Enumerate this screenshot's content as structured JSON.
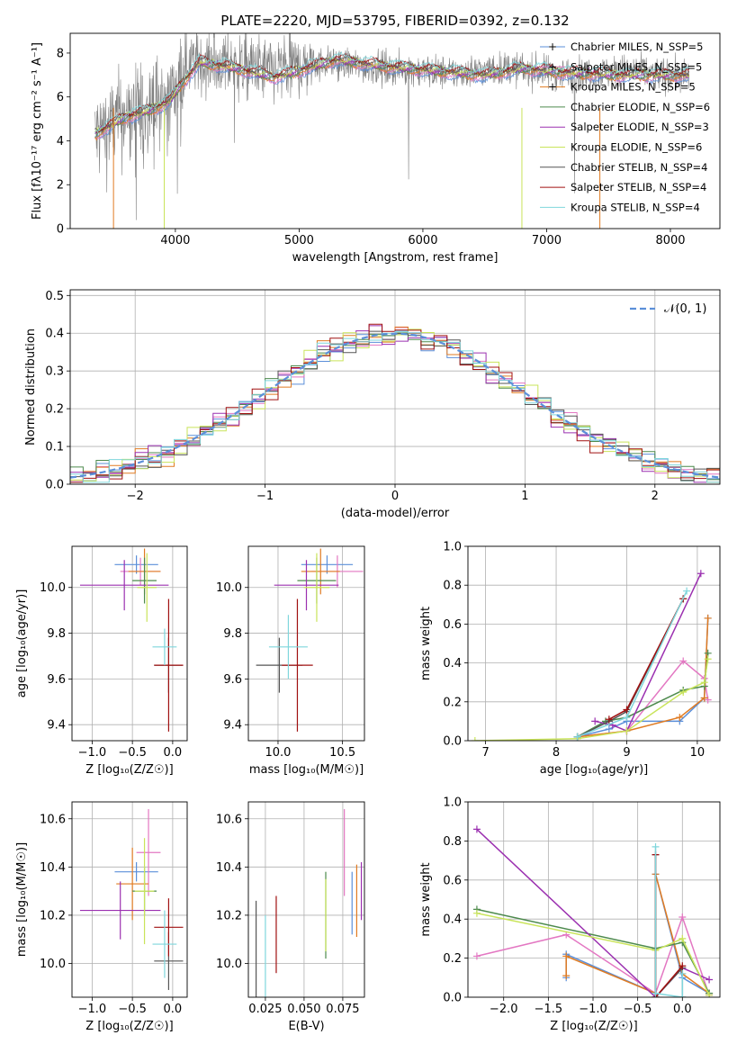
{
  "chart_data": [
    {
      "id": "spectrum",
      "type": "line",
      "title": "PLATE=2220, MJD=53795, FIBERID=0392, z=0.132",
      "xlabel": "wavelength [Angstrom, rest frame]",
      "ylabel": "Flux [fλ10⁻¹⁷ erg cm⁻² s⁻¹ A⁻¹]",
      "xlim": [
        3150,
        8400
      ],
      "ylim": [
        0,
        8.9
      ],
      "xticks": [
        4000,
        5000,
        6000,
        7000,
        8000
      ],
      "yticks": [
        0,
        2,
        4,
        6,
        8
      ],
      "data_color": "#808080",
      "data_outline": [
        [
          3350,
          4.2
        ],
        [
          3550,
          5.0
        ],
        [
          3750,
          5.4
        ],
        [
          3950,
          5.9
        ],
        [
          4100,
          7.6
        ],
        [
          4400,
          7.5
        ],
        [
          4800,
          7.2
        ],
        [
          5200,
          7.6
        ],
        [
          5700,
          7.3
        ],
        [
          6200,
          7.1
        ],
        [
          6700,
          7.3
        ],
        [
          7200,
          7.0
        ],
        [
          7700,
          7.2
        ],
        [
          8100,
          6.9
        ]
      ],
      "legend_location": "right",
      "series": [
        {
          "name": "Chabrier MILES, N_SSP=5",
          "color": "#5b8fd9"
        },
        {
          "name": "Salpeter MILES, N_SSP=5",
          "color": "#e377c2"
        },
        {
          "name": "Kroupa MILES, N_SSP=5",
          "color": "#e07b22"
        },
        {
          "name": "Chabrier ELODIE, N_SSP=6",
          "color": "#4d8a4d"
        },
        {
          "name": "Salpeter ELODIE, N_SSP=3",
          "color": "#9b30b0"
        },
        {
          "name": "Kroupa ELODIE, N_SSP=6",
          "color": "#c9e45a"
        },
        {
          "name": "Chabrier STELIB, N_SSP=4",
          "color": "#555555"
        },
        {
          "name": "Salpeter STELIB, N_SSP=4",
          "color": "#a01010"
        },
        {
          "name": "Kroupa STELIB, N_SSP=4",
          "color": "#7fd6dc"
        }
      ],
      "model_shape": [
        [
          3350,
          4.3
        ],
        [
          3600,
          5.1
        ],
        [
          3800,
          5.4
        ],
        [
          3950,
          5.8
        ],
        [
          4050,
          6.6
        ],
        [
          4200,
          7.6
        ],
        [
          4500,
          7.3
        ],
        [
          4800,
          6.9
        ],
        [
          5000,
          7.2
        ],
        [
          5300,
          7.7
        ],
        [
          5700,
          7.4
        ],
        [
          6100,
          7.2
        ],
        [
          6500,
          7.0
        ],
        [
          6800,
          7.3
        ],
        [
          7200,
          7.1
        ],
        [
          7600,
          7.0
        ],
        [
          8100,
          7.0
        ]
      ]
    },
    {
      "id": "residuals",
      "type": "histogram",
      "xlabel": "(data-model)/error",
      "ylabel": "Normed distribution",
      "xlim": [
        -2.5,
        2.5
      ],
      "ylim": [
        0,
        0.515
      ],
      "xticks": [
        -2,
        -1,
        0,
        1,
        2
      ],
      "yticks": [
        0.0,
        0.1,
        0.2,
        0.3,
        0.4,
        0.5
      ],
      "grid": true,
      "legend_location": "top-right",
      "reference": {
        "name": "𝒩(0, 1)",
        "color": "#5b8fd9",
        "style": "dashed"
      }
    },
    {
      "id": "age_vs_Z",
      "type": "errorbar",
      "xlabel": "Z [log₁₀(Z/Z☉)]",
      "ylabel": "age  [log₁₀(age/yr)]",
      "xlim": [
        -1.25,
        0.18
      ],
      "ylim": [
        9.33,
        10.18
      ],
      "xticks": [
        -1.0,
        -0.5,
        0.0
      ],
      "yticks": [
        9.4,
        9.6,
        9.8,
        10.0
      ],
      "grid": true,
      "points": [
        {
          "color": "#5b8fd9",
          "x": -0.45,
          "xerr": 0.27,
          "y": 10.1,
          "yerr": 0.04
        },
        {
          "color": "#e377c2",
          "x": -0.4,
          "xerr": 0.25,
          "y": 10.07,
          "yerr": 0.06
        },
        {
          "color": "#e07b22",
          "x": -0.35,
          "xerr": 0.2,
          "y": 10.07,
          "yerr": 0.1
        },
        {
          "color": "#4d8a4d",
          "x": -0.35,
          "xerr": 0.15,
          "y": 10.03,
          "yerr": 0.1
        },
        {
          "color": "#9b30b0",
          "x": -0.6,
          "xerr": 0.55,
          "y": 10.01,
          "yerr": 0.11
        },
        {
          "color": "#c9e45a",
          "x": -0.32,
          "xerr": 0.12,
          "y": 10.0,
          "yerr": 0.15
        },
        {
          "color": "#555555",
          "x": -0.05,
          "xerr": 0.18,
          "y": 9.66,
          "yerr": 0.12
        },
        {
          "color": "#a01010",
          "x": -0.05,
          "xerr": 0.18,
          "y": 9.66,
          "yerr": 0.29
        },
        {
          "color": "#7fd6dc",
          "x": -0.1,
          "xerr": 0.15,
          "y": 9.74,
          "yerr": 0.08
        }
      ]
    },
    {
      "id": "age_vs_mass",
      "type": "errorbar",
      "xlabel": "mass [log₁₀(M/M☉)]",
      "ylabel": "",
      "xlim": [
        9.77,
        10.67
      ],
      "ylim": [
        9.33,
        10.18
      ],
      "xticks": [
        10.0,
        10.5
      ],
      "yticks": [
        9.4,
        9.6,
        9.8,
        10.0
      ],
      "grid": true,
      "points": [
        {
          "color": "#5b8fd9",
          "x": 10.38,
          "xerr": 0.2,
          "y": 10.1,
          "yerr": 0.04
        },
        {
          "color": "#e377c2",
          "x": 10.46,
          "xerr": 0.2,
          "y": 10.07,
          "yerr": 0.07
        },
        {
          "color": "#e07b22",
          "x": 10.33,
          "xerr": 0.15,
          "y": 10.07,
          "yerr": 0.1
        },
        {
          "color": "#4d8a4d",
          "x": 10.3,
          "xerr": 0.15,
          "y": 10.03,
          "yerr": 0.1
        },
        {
          "color": "#9b30b0",
          "x": 10.22,
          "xerr": 0.25,
          "y": 10.01,
          "yerr": 0.11
        },
        {
          "color": "#c9e45a",
          "x": 10.3,
          "xerr": 0.1,
          "y": 10.0,
          "yerr": 0.15
        },
        {
          "color": "#555555",
          "x": 10.01,
          "xerr": 0.18,
          "y": 9.66,
          "yerr": 0.12
        },
        {
          "color": "#a01010",
          "x": 10.15,
          "xerr": 0.12,
          "y": 9.66,
          "yerr": 0.29
        },
        {
          "color": "#7fd6dc",
          "x": 10.08,
          "xerr": 0.15,
          "y": 9.74,
          "yerr": 0.14
        }
      ]
    },
    {
      "id": "weight_vs_age",
      "type": "line",
      "xlabel": "age  [log₁₀(age/yr)]",
      "ylabel": "mass weight",
      "xlim": [
        6.75,
        10.32
      ],
      "ylim": [
        0,
        1.0
      ],
      "xticks": [
        7,
        8,
        9,
        10
      ],
      "yticks": [
        0.0,
        0.2,
        0.4,
        0.6,
        0.8,
        1.0
      ],
      "grid": true,
      "series": [
        {
          "color": "#5b8fd9",
          "points": [
            [
              8.3,
              0.02
            ],
            [
              8.75,
              0.06
            ],
            [
              9.0,
              0.1
            ],
            [
              9.75,
              0.1
            ],
            [
              10.1,
              0.22
            ],
            [
              10.15,
              0.63
            ]
          ]
        },
        {
          "color": "#e377c2",
          "points": [
            [
              8.3,
              0.02
            ],
            [
              9.0,
              0.05
            ],
            [
              9.8,
              0.41
            ],
            [
              10.1,
              0.32
            ],
            [
              10.15,
              0.21
            ]
          ]
        },
        {
          "color": "#e07b22",
          "points": [
            [
              8.3,
              0.02
            ],
            [
              9.0,
              0.05
            ],
            [
              9.75,
              0.12
            ],
            [
              10.1,
              0.22
            ],
            [
              10.15,
              0.63
            ]
          ]
        },
        {
          "color": "#4d8a4d",
          "points": [
            [
              8.3,
              0.02
            ],
            [
              8.7,
              0.1
            ],
            [
              9.0,
              0.12
            ],
            [
              9.8,
              0.26
            ],
            [
              10.1,
              0.28
            ],
            [
              10.15,
              0.45
            ]
          ]
        },
        {
          "color": "#9b30b0",
          "points": [
            [
              8.55,
              0.1
            ],
            [
              8.8,
              0.08
            ],
            [
              9.0,
              0.05
            ],
            [
              10.05,
              0.86
            ]
          ]
        },
        {
          "color": "#c9e45a",
          "points": [
            [
              6.85,
              0.0
            ],
            [
              8.3,
              0.01
            ],
            [
              9.0,
              0.05
            ],
            [
              9.8,
              0.25
            ],
            [
              10.1,
              0.3
            ],
            [
              10.15,
              0.42
            ]
          ]
        },
        {
          "color": "#555555",
          "points": [
            [
              8.3,
              0.02
            ],
            [
              8.75,
              0.1
            ],
            [
              9.0,
              0.15
            ],
            [
              9.8,
              0.73
            ]
          ]
        },
        {
          "color": "#a01010",
          "points": [
            [
              8.75,
              0.11
            ],
            [
              9.0,
              0.16
            ],
            [
              9.8,
              0.73
            ]
          ]
        },
        {
          "color": "#7fd6dc",
          "points": [
            [
              8.3,
              0.02
            ],
            [
              9.0,
              0.12
            ],
            [
              9.85,
              0.77
            ]
          ]
        }
      ]
    },
    {
      "id": "mass_vs_Z",
      "type": "errorbar",
      "xlabel": "Z [log₁₀(Z/Z☉)]",
      "ylabel": "mass [log₁₀(M/M☉)]",
      "xlim": [
        -1.25,
        0.18
      ],
      "ylim": [
        9.86,
        10.67
      ],
      "xticks": [
        -1.0,
        -0.5,
        0.0
      ],
      "yticks": [
        10.0,
        10.2,
        10.4,
        10.6
      ],
      "grid": true,
      "points": [
        {
          "color": "#5b8fd9",
          "x": -0.45,
          "xerr": 0.27,
          "y": 10.38,
          "yerr": 0.04
        },
        {
          "color": "#e377c2",
          "x": -0.3,
          "xerr": 0.15,
          "y": 10.46,
          "yerr": 0.18
        },
        {
          "color": "#e07b22",
          "x": -0.5,
          "xerr": 0.2,
          "y": 10.33,
          "yerr": 0.15
        },
        {
          "color": "#4d8a4d",
          "x": -0.35,
          "xerr": 0.15,
          "y": 10.3,
          "yerr": 0.1
        },
        {
          "color": "#9b30b0",
          "x": -0.65,
          "xerr": 0.5,
          "y": 10.22,
          "yerr": 0.12
        },
        {
          "color": "#c9e45a",
          "x": -0.35,
          "xerr": 0.12,
          "y": 10.3,
          "yerr": 0.22
        },
        {
          "color": "#555555",
          "x": -0.05,
          "xerr": 0.18,
          "y": 10.01,
          "yerr": 0.12
        },
        {
          "color": "#a01010",
          "x": -0.05,
          "xerr": 0.18,
          "y": 10.15,
          "yerr": 0.12
        },
        {
          "color": "#7fd6dc",
          "x": -0.1,
          "xerr": 0.15,
          "y": 10.08,
          "yerr": 0.14
        }
      ]
    },
    {
      "id": "mass_vs_ebv",
      "type": "errorbar",
      "xlabel": "E(B-V)",
      "ylabel": "",
      "xlim": [
        0.014,
        0.089
      ],
      "ylim": [
        9.86,
        10.67
      ],
      "xticks": [
        0.025,
        0.05,
        0.075
      ],
      "yticks": [
        10.0,
        10.2,
        10.4,
        10.6
      ],
      "grid": true,
      "points": [
        {
          "color": "#5b8fd9",
          "x": 0.081,
          "y": 10.25,
          "yerr": 0.13
        },
        {
          "color": "#e377c2",
          "x": 0.076,
          "y": 10.46,
          "yerr": 0.18
        },
        {
          "color": "#e07b22",
          "x": 0.084,
          "y": 10.26,
          "yerr": 0.15
        },
        {
          "color": "#4d8a4d",
          "x": 0.064,
          "y": 10.2,
          "yerr": 0.18
        },
        {
          "color": "#9b30b0",
          "x": 0.087,
          "y": 10.3,
          "yerr": 0.12
        },
        {
          "color": "#c9e45a",
          "x": 0.064,
          "y": 10.2,
          "yerr": 0.15
        },
        {
          "color": "#555555",
          "x": 0.019,
          "y": 10.01,
          "yerr": 0.25
        },
        {
          "color": "#a01010",
          "x": 0.032,
          "y": 10.12,
          "yerr": 0.16
        },
        {
          "color": "#7fd6dc",
          "x": 0.025,
          "y": 10.02,
          "yerr": 0.18
        }
      ]
    },
    {
      "id": "weight_vs_Z",
      "type": "line",
      "xlabel": "Z [log₁₀(Z/Z☉)]",
      "ylabel": "mass weight",
      "xlim": [
        -2.4,
        0.42
      ],
      "ylim": [
        0,
        1.0
      ],
      "xticks": [
        -2.0,
        -1.5,
        -1.0,
        -0.5,
        0.0
      ],
      "yticks": [
        0.0,
        0.2,
        0.4,
        0.6,
        0.8,
        1.0
      ],
      "grid": true,
      "series": [
        {
          "color": "#5b8fd9",
          "points": [
            [
              -1.3,
              0.1
            ],
            [
              -1.3,
              0.22
            ],
            [
              -0.3,
              0.02
            ],
            [
              -0.3,
              0.63
            ],
            [
              0.0,
              0.1
            ],
            [
              0.3,
              0.02
            ]
          ]
        },
        {
          "color": "#e377c2",
          "points": [
            [
              -2.3,
              0.21
            ],
            [
              -1.3,
              0.32
            ],
            [
              -0.3,
              0.02
            ],
            [
              0.0,
              0.41
            ],
            [
              0.3,
              0.01
            ]
          ]
        },
        {
          "color": "#e07b22",
          "points": [
            [
              -1.3,
              0.11
            ],
            [
              -1.3,
              0.21
            ],
            [
              -0.3,
              0.02
            ],
            [
              -0.3,
              0.63
            ],
            [
              0.0,
              0.12
            ],
            [
              0.3,
              0.02
            ]
          ]
        },
        {
          "color": "#4d8a4d",
          "points": [
            [
              -2.3,
              0.45
            ],
            [
              -0.3,
              0.25
            ],
            [
              0.0,
              0.28
            ],
            [
              0.3,
              0.02
            ]
          ]
        },
        {
          "color": "#9b30b0",
          "points": [
            [
              -2.3,
              0.86
            ],
            [
              -0.3,
              0.0
            ],
            [
              0.0,
              0.15
            ],
            [
              0.3,
              0.09
            ]
          ]
        },
        {
          "color": "#c9e45a",
          "points": [
            [
              -2.3,
              0.43
            ],
            [
              -0.3,
              0.24
            ],
            [
              0.0,
              0.3
            ],
            [
              0.3,
              0.01
            ]
          ]
        },
        {
          "color": "#555555",
          "points": [
            [
              -0.3,
              0.73
            ],
            [
              -0.3,
              0.0
            ],
            [
              0.0,
              0.15
            ],
            [
              0.0,
              0.0
            ]
          ]
        },
        {
          "color": "#a01010",
          "points": [
            [
              -0.3,
              0.73
            ],
            [
              -0.3,
              0.0
            ],
            [
              0.0,
              0.16
            ]
          ]
        },
        {
          "color": "#7fd6dc",
          "points": [
            [
              -0.3,
              0.77
            ],
            [
              -0.3,
              0.02
            ],
            [
              0.0,
              0.0
            ],
            [
              0.0,
              0.12
            ]
          ]
        }
      ]
    }
  ]
}
